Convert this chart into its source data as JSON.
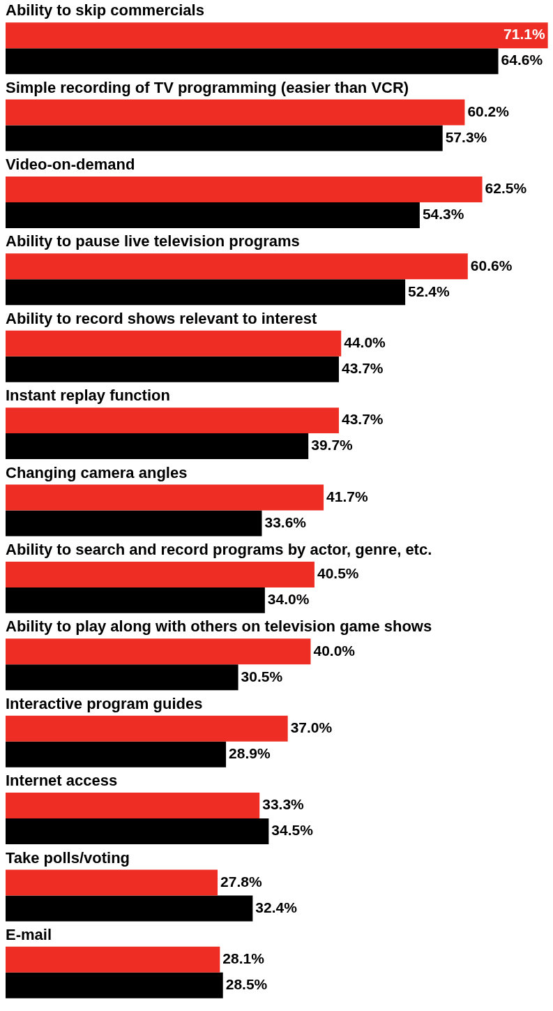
{
  "chart_data": {
    "type": "bar",
    "orientation": "horizontal",
    "tick_labels": false,
    "xlim": [
      0,
      71.5
    ],
    "categories": [
      "Ability to skip commercials",
      "Simple recording of TV programming (easier than VCR)",
      "Video-on-demand",
      "Ability to pause live television programs",
      "Ability to record shows relevant to interest",
      "Instant replay function",
      "Changing camera angles",
      "Ability to search and record programs by actor, genre, etc.",
      "Ability to play along with others on television game shows",
      "Interactive program guides",
      "Internet access",
      "Take polls/voting",
      "E-mail"
    ],
    "series": [
      {
        "color": "#ee2e24",
        "values": [
          71.1,
          60.2,
          62.5,
          60.6,
          44.0,
          43.7,
          41.7,
          40.5,
          40.0,
          37.0,
          33.3,
          27.8,
          28.1
        ],
        "value_labels": [
          "71.1%",
          "60.2%",
          "62.5%",
          "60.6%",
          "44.0%",
          "43.7%",
          "41.7%",
          "40.5%",
          "40.0%",
          "37.0%",
          "33.3%",
          "27.8%",
          "28.1%"
        ]
      },
      {
        "color": "#000000",
        "values": [
          64.6,
          57.3,
          54.3,
          52.4,
          43.7,
          39.7,
          33.6,
          34.0,
          30.5,
          28.9,
          34.5,
          32.4,
          28.5
        ],
        "value_labels": [
          "64.6%",
          "57.3%",
          "54.3%",
          "52.4%",
          "43.7%",
          "39.7%",
          "33.6%",
          "34.0%",
          "30.5%",
          "28.9%",
          "34.5%",
          "32.4%",
          "28.5%"
        ]
      }
    ]
  }
}
